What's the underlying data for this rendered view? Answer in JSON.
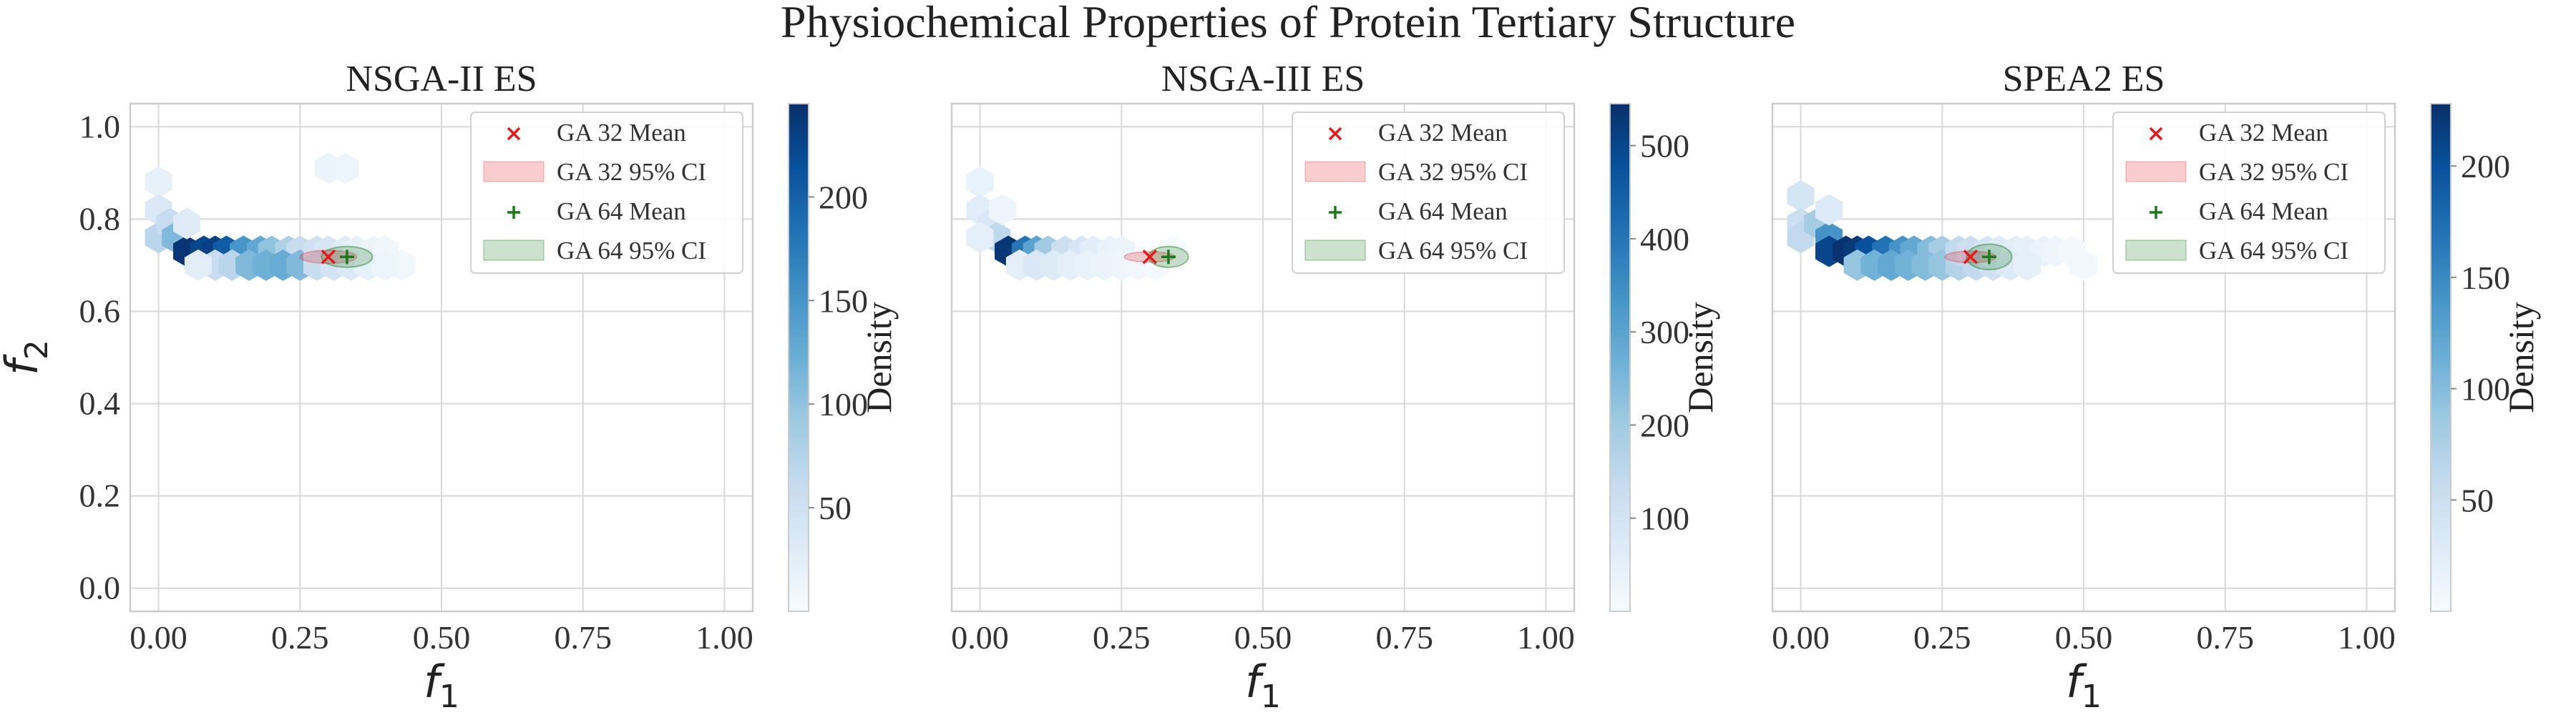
{
  "figure": {
    "title": "Physiochemical Properties of Protein Tertiary Structure"
  },
  "colors": {
    "density_light": "#f4f9fe",
    "density_dark": "#08306b",
    "ga32_color": "#e41a1c",
    "ga64_color": "#1a7a1a",
    "grid": "#d9d9d9",
    "axes_edge": "#cccccc"
  },
  "chart_data": [
    {
      "type": "hexbin",
      "title": "NSGA-II ES",
      "xlabel": "f1",
      "ylabel": "f2",
      "xlim": [
        -0.05,
        1.05
      ],
      "ylim": [
        -0.05,
        1.05
      ],
      "xticks": [
        "0.00",
        "0.25",
        "0.50",
        "0.75",
        "1.00"
      ],
      "yticks": [
        "0.0",
        "0.2",
        "0.4",
        "0.6",
        "0.8",
        "1.0"
      ],
      "grid": true,
      "legend_position": "top-right",
      "legend": [
        "GA 32 Mean",
        "GA 32 95% CI",
        "GA 64 Mean",
        "GA 64 95% CI"
      ],
      "colorbar": {
        "label": "Density",
        "min": 0,
        "max": 245,
        "ticks": [
          50,
          100,
          150,
          200
        ]
      },
      "hexbins": [
        [
          0.0,
          0.88,
          20
        ],
        [
          0.0,
          0.82,
          35
        ],
        [
          0.0,
          0.76,
          70
        ],
        [
          0.02,
          0.79,
          60
        ],
        [
          0.03,
          0.76,
          110
        ],
        [
          0.05,
          0.73,
          240
        ],
        [
          0.08,
          0.73,
          225
        ],
        [
          0.1,
          0.73,
          230
        ],
        [
          0.12,
          0.73,
          205
        ],
        [
          0.15,
          0.73,
          150
        ],
        [
          0.18,
          0.73,
          130
        ],
        [
          0.2,
          0.73,
          100
        ],
        [
          0.23,
          0.73,
          80
        ],
        [
          0.25,
          0.73,
          60
        ],
        [
          0.1,
          0.7,
          55
        ],
        [
          0.13,
          0.7,
          70
        ],
        [
          0.16,
          0.7,
          110
        ],
        [
          0.19,
          0.7,
          120
        ],
        [
          0.22,
          0.7,
          125
        ],
        [
          0.25,
          0.7,
          110
        ],
        [
          0.28,
          0.73,
          50
        ],
        [
          0.3,
          0.73,
          40
        ],
        [
          0.33,
          0.73,
          30
        ],
        [
          0.35,
          0.73,
          20
        ],
        [
          0.38,
          0.73,
          15
        ],
        [
          0.4,
          0.73,
          10
        ],
        [
          0.43,
          0.7,
          8
        ],
        [
          0.28,
          0.7,
          60
        ],
        [
          0.31,
          0.7,
          45
        ],
        [
          0.34,
          0.7,
          35
        ],
        [
          0.37,
          0.7,
          20
        ],
        [
          0.4,
          0.7,
          12
        ],
        [
          0.3,
          0.91,
          15
        ],
        [
          0.33,
          0.91,
          12
        ],
        [
          0.07,
          0.7,
          25
        ],
        [
          0.05,
          0.79,
          30
        ]
      ],
      "ga32": {
        "mean": [
          0.3,
          0.718
        ],
        "ci_width": 0.1,
        "ci_height": 0.028
      },
      "ga64": {
        "mean": [
          0.333,
          0.718
        ],
        "ci_width": 0.09,
        "ci_height": 0.045
      }
    },
    {
      "type": "hexbin",
      "title": "NSGA-III ES",
      "xlabel": "f1",
      "ylabel": "",
      "xlim": [
        -0.05,
        1.05
      ],
      "ylim": [
        -0.05,
        1.05
      ],
      "xticks": [
        "0.00",
        "0.25",
        "0.50",
        "0.75",
        "1.00"
      ],
      "yticks": [],
      "grid": true,
      "legend_position": "top-right",
      "legend": [
        "GA 32 Mean",
        "GA 32 95% CI",
        "GA 64 Mean",
        "GA 64 95% CI"
      ],
      "colorbar": {
        "label": "Density",
        "min": 0,
        "max": 545,
        "ticks": [
          100,
          200,
          300,
          400,
          500
        ]
      },
      "hexbins": [
        [
          0.0,
          0.88,
          40
        ],
        [
          0.0,
          0.82,
          60
        ],
        [
          0.02,
          0.79,
          80
        ],
        [
          0.03,
          0.76,
          150
        ],
        [
          0.05,
          0.73,
          530
        ],
        [
          0.08,
          0.73,
          400
        ],
        [
          0.1,
          0.73,
          300
        ],
        [
          0.12,
          0.73,
          200
        ],
        [
          0.15,
          0.73,
          120
        ],
        [
          0.18,
          0.73,
          90
        ],
        [
          0.2,
          0.73,
          60
        ],
        [
          0.23,
          0.73,
          40
        ],
        [
          0.25,
          0.73,
          30
        ],
        [
          0.07,
          0.7,
          50
        ],
        [
          0.1,
          0.7,
          80
        ],
        [
          0.13,
          0.7,
          70
        ],
        [
          0.16,
          0.7,
          50
        ],
        [
          0.19,
          0.7,
          40
        ],
        [
          0.22,
          0.7,
          30
        ],
        [
          0.25,
          0.7,
          25
        ],
        [
          0.28,
          0.7,
          15
        ],
        [
          0.31,
          0.7,
          10
        ],
        [
          0.34,
          0.73,
          8
        ],
        [
          0.0,
          0.76,
          50
        ],
        [
          0.04,
          0.82,
          25
        ]
      ],
      "ga32": {
        "mean": [
          0.3,
          0.718
        ],
        "ci_width": 0.09,
        "ci_height": 0.022
      },
      "ga64": {
        "mean": [
          0.333,
          0.718
        ],
        "ci_width": 0.07,
        "ci_height": 0.045
      }
    },
    {
      "type": "hexbin",
      "title": "SPEA2 ES",
      "xlabel": "f1",
      "ylabel": "",
      "xlim": [
        -0.05,
        1.05
      ],
      "ylim": [
        -0.05,
        1.05
      ],
      "xticks": [
        "0.00",
        "0.25",
        "0.50",
        "0.75",
        "1.00"
      ],
      "yticks": [],
      "grid": true,
      "legend_position": "top-right",
      "legend": [
        "GA 32 Mean",
        "GA 32 95% CI",
        "GA 64 Mean",
        "GA 64 95% CI"
      ],
      "colorbar": {
        "label": "Density",
        "min": 0,
        "max": 228,
        "ticks": [
          50,
          100,
          150,
          200
        ]
      },
      "hexbins": [
        [
          0.0,
          0.85,
          40
        ],
        [
          0.0,
          0.79,
          50
        ],
        [
          0.0,
          0.76,
          60
        ],
        [
          0.03,
          0.79,
          80
        ],
        [
          0.05,
          0.76,
          140
        ],
        [
          0.05,
          0.73,
          210
        ],
        [
          0.08,
          0.73,
          225
        ],
        [
          0.1,
          0.73,
          220
        ],
        [
          0.12,
          0.73,
          200
        ],
        [
          0.15,
          0.73,
          170
        ],
        [
          0.18,
          0.73,
          140
        ],
        [
          0.2,
          0.73,
          120
        ],
        [
          0.23,
          0.73,
          100
        ],
        [
          0.25,
          0.73,
          80
        ],
        [
          0.1,
          0.7,
          90
        ],
        [
          0.13,
          0.7,
          110
        ],
        [
          0.16,
          0.7,
          120
        ],
        [
          0.19,
          0.7,
          110
        ],
        [
          0.22,
          0.7,
          100
        ],
        [
          0.25,
          0.7,
          90
        ],
        [
          0.28,
          0.7,
          70
        ],
        [
          0.28,
          0.73,
          60
        ],
        [
          0.3,
          0.73,
          50
        ],
        [
          0.33,
          0.73,
          40
        ],
        [
          0.35,
          0.73,
          30
        ],
        [
          0.38,
          0.73,
          25
        ],
        [
          0.4,
          0.73,
          20
        ],
        [
          0.43,
          0.73,
          15
        ],
        [
          0.45,
          0.73,
          10
        ],
        [
          0.48,
          0.73,
          6
        ],
        [
          0.31,
          0.7,
          60
        ],
        [
          0.34,
          0.7,
          45
        ],
        [
          0.37,
          0.7,
          30
        ],
        [
          0.4,
          0.7,
          20
        ],
        [
          0.05,
          0.82,
          30
        ],
        [
          0.5,
          0.7,
          5
        ]
      ],
      "ga32": {
        "mean": [
          0.3,
          0.718
        ],
        "ci_width": 0.09,
        "ci_height": 0.025
      },
      "ga64": {
        "mean": [
          0.333,
          0.718
        ],
        "ci_width": 0.08,
        "ci_height": 0.055
      }
    }
  ]
}
